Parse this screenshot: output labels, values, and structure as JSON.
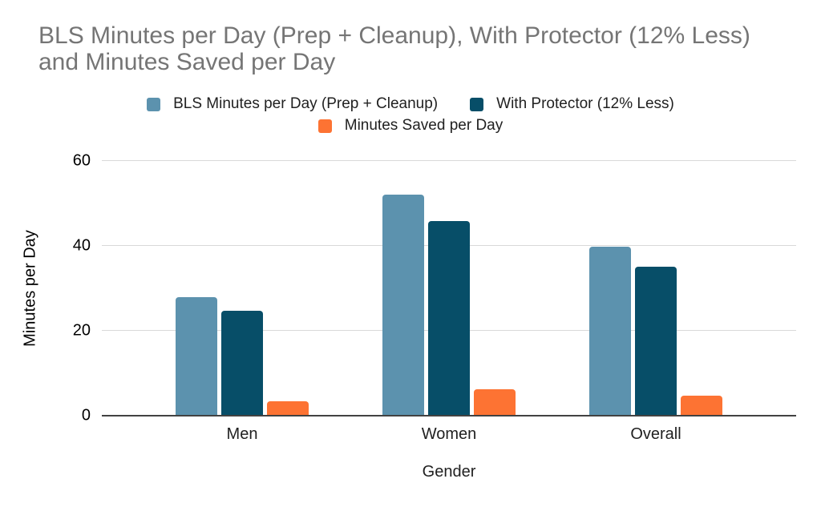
{
  "chart_data": {
    "type": "bar",
    "title": "BLS Minutes per Day (Prep + Cleanup), With Protector (12% Less) and Minutes Saved per Day",
    "xlabel": "Gender",
    "ylabel": "Minutes per Day",
    "categories": [
      "Men",
      "Women",
      "Overall"
    ],
    "series": [
      {
        "name": "BLS Minutes per Day (Prep + Cleanup)",
        "color": "#5C92AE",
        "values": [
          28,
          52,
          39.8
        ]
      },
      {
        "name": "With Protector (12% Less)",
        "color": "#074E68",
        "values": [
          24.64,
          45.76,
          35.02
        ]
      },
      {
        "name": "Minutes Saved per Day",
        "color": "#FD7333",
        "values": [
          3.36,
          6.24,
          4.78
        ]
      }
    ],
    "ylim": [
      0,
      60
    ],
    "yticks": [
      0,
      20,
      40,
      60
    ],
    "grid": true,
    "legend_position": "top",
    "colors": {
      "title_text": "#757575",
      "axis_text": "#212121",
      "gridline": "#d9d9d9",
      "axis_line": "#424242",
      "background": "#ffffff"
    }
  }
}
